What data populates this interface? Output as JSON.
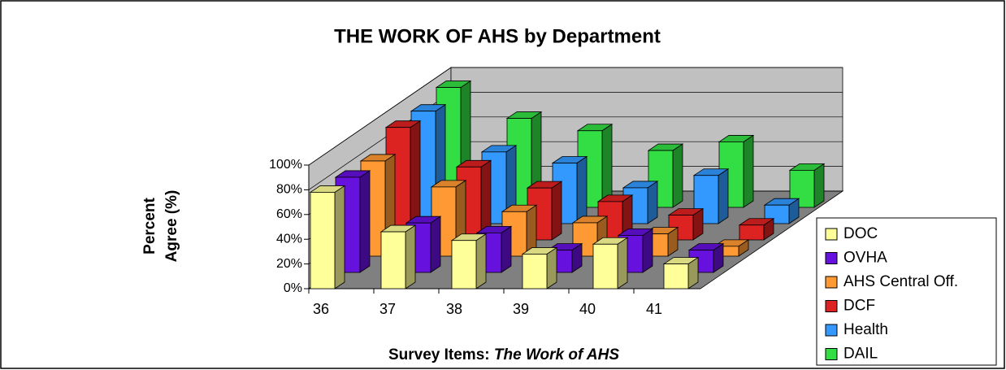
{
  "chart_data": {
    "type": "bar3d",
    "title": "THE WORK OF AHS by Department",
    "y_label": [
      "Percent",
      "Agree (%)"
    ],
    "x_label": [
      "Survey Items: ",
      "The Work of AHS"
    ],
    "categories": [
      "36",
      "37",
      "38",
      "39",
      "40",
      "41"
    ],
    "series": [
      {
        "name": "DOC",
        "color": "#ffff99",
        "values": [
          78,
          46,
          39,
          28,
          36,
          20
        ]
      },
      {
        "name": "OVHA",
        "color": "#6611dd",
        "values": [
          77,
          40,
          32,
          18,
          30,
          18
        ]
      },
      {
        "name": "AHS Central Off.",
        "color": "#ff9933",
        "values": [
          77,
          56,
          36,
          27,
          18,
          8
        ]
      },
      {
        "name": "DCF",
        "color": "#dd2222",
        "values": [
          91,
          59,
          42,
          31,
          20,
          12
        ]
      },
      {
        "name": "Health",
        "color": "#3399ff",
        "values": [
          91,
          58,
          49,
          29,
          39,
          15
        ]
      },
      {
        "name": "DAIL",
        "color": "#33dd44",
        "values": [
          97,
          72,
          62,
          46,
          53,
          30
        ]
      }
    ],
    "ylim": [
      0,
      100
    ],
    "yticks": [
      {
        "value": 0,
        "label": "0%"
      },
      {
        "value": 20,
        "label": "20%"
      },
      {
        "value": 40,
        "label": "40%"
      },
      {
        "value": 60,
        "label": "60%"
      },
      {
        "value": 80,
        "label": "80%"
      },
      {
        "value": 100,
        "label": "100%"
      }
    ],
    "grid": true,
    "legend": "right"
  }
}
